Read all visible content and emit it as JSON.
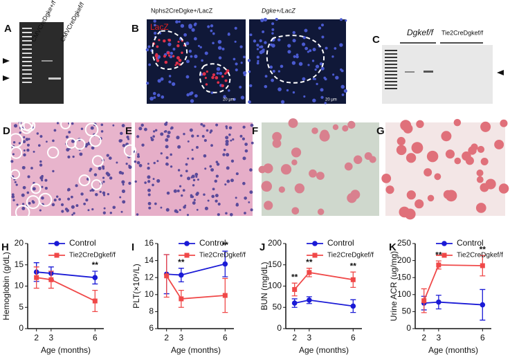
{
  "panel_letters": [
    "A",
    "B",
    "C",
    "D",
    "E",
    "F",
    "G"
  ],
  "image_labels": [
    "CMVCreDgke+/f",
    "CMVCreDgkef/f",
    "Nphs2CreDgke+/LacZ",
    "Dgke+/LacZ",
    "LacZ",
    "20 μm",
    "20 μm",
    "Dgkef/f",
    "Tie2CreDgkef/f"
  ],
  "chart_data": [
    {
      "type": "line",
      "panel": "H",
      "y_label": "Hemoglobin (g/dL)",
      "x_label": "Age (months)",
      "x": [
        2,
        3,
        6
      ],
      "xlim": [
        1.4,
        6.6
      ],
      "xticks": [
        2,
        3,
        6
      ],
      "ylim": [
        0,
        20
      ],
      "yticks": [
        0,
        5,
        10,
        15,
        20
      ],
      "series": [
        {
          "name": "Control",
          "color": "#1a1ad6",
          "marker": "circle",
          "values": [
            13.3,
            13,
            12
          ],
          "errors": [
            2.2,
            1.5,
            1.5
          ]
        },
        {
          "name": "Tie2CreDgkef/f",
          "color": "#f04848",
          "marker": "square",
          "values": [
            12,
            11.5,
            6.5
          ],
          "errors": [
            2.5,
            2,
            2.5
          ]
        }
      ],
      "annotations": [
        {
          "x": 6,
          "text": "**"
        }
      ]
    },
    {
      "type": "line",
      "panel": "I",
      "y_label": "PLT(×10⁹/L)",
      "x_label": "Age (months)",
      "x": [
        2,
        3,
        6
      ],
      "xlim": [
        1.4,
        6.6
      ],
      "xticks": [
        2,
        3,
        6
      ],
      "ylim": [
        6,
        16
      ],
      "yticks": [
        6,
        8,
        10,
        12,
        14,
        16
      ],
      "series": [
        {
          "name": "Control",
          "color": "#1a1ad6",
          "marker": "circle",
          "values": [
            12.4,
            12.3,
            13.6
          ],
          "errors": [
            2.3,
            0.8,
            1.5
          ]
        },
        {
          "name": "Tie2CreDgkef/f",
          "color": "#f04848",
          "marker": "square",
          "values": [
            12.2,
            9.5,
            9.9
          ],
          "errors": [
            2.5,
            1,
            2
          ]
        }
      ],
      "annotations": [
        {
          "x": 3,
          "text": "**"
        },
        {
          "x": 6,
          "text": "**"
        }
      ]
    },
    {
      "type": "line",
      "panel": "J",
      "y_label": "BUN (mg/dL)",
      "x_label": "Age (months)",
      "x": [
        2,
        3,
        6
      ],
      "xlim": [
        1.4,
        6.6
      ],
      "xticks": [
        2,
        3,
        6
      ],
      "ylim": [
        0,
        200
      ],
      "yticks": [
        0,
        50,
        100,
        150,
        200
      ],
      "series": [
        {
          "name": "Control",
          "color": "#1a1ad6",
          "marker": "circle",
          "values": [
            60,
            67,
            53
          ],
          "errors": [
            10,
            8,
            15
          ]
        },
        {
          "name": "Tie2CreDgkef/f",
          "color": "#f04848",
          "marker": "square",
          "values": [
            92,
            132,
            115
          ],
          "errors": [
            15,
            10,
            18
          ]
        }
      ],
      "annotations": [
        {
          "x": 2,
          "text": "**"
        },
        {
          "x": 3,
          "text": "**"
        },
        {
          "x": 6,
          "text": "**"
        }
      ]
    },
    {
      "type": "line",
      "panel": "K",
      "y_label": "Urine ACR (ug/mg)",
      "x_label": "Age (months)",
      "x": [
        2,
        3,
        6
      ],
      "xlim": [
        1.4,
        6.6
      ],
      "xticks": [
        2,
        3,
        6
      ],
      "ylim": [
        0,
        250
      ],
      "yticks": [
        0,
        50,
        100,
        150,
        200,
        250
      ],
      "series": [
        {
          "name": "Control",
          "color": "#1a1ad6",
          "marker": "circle",
          "values": [
            75,
            78,
            70
          ],
          "errors": [
            20,
            20,
            45
          ]
        },
        {
          "name": "Tie2CreDgkef/f",
          "color": "#f04848",
          "marker": "square",
          "values": [
            82,
            187,
            185
          ],
          "errors": [
            35,
            12,
            30
          ]
        }
      ],
      "annotations": [
        {
          "x": 3,
          "text": "**"
        },
        {
          "x": 6,
          "text": "**"
        }
      ]
    }
  ]
}
